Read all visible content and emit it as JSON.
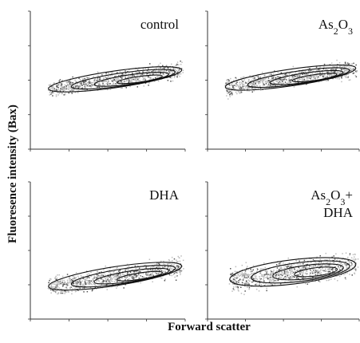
{
  "figure": {
    "ylabel": "Fluoresence intensity (Bax)",
    "xlabel": "Forward scatter"
  },
  "chart_data": [
    {
      "type": "scatter",
      "panel": "control",
      "title_parts": [
        {
          "t": "control",
          "sub": false
        }
      ],
      "xlabel": "Forward scatter",
      "ylabel": "Fluoresence intensity (Bax)",
      "xlim": [
        0,
        1023
      ],
      "ylim": [
        0,
        4
      ],
      "y_scale": "log",
      "grid": false,
      "cluster": {
        "x_start": 120,
        "x_end": 1000,
        "y_start": 1.75,
        "y_end": 2.3,
        "spread": 0.22
      },
      "contour_levels": 4
    },
    {
      "type": "scatter",
      "panel": "As2O3",
      "title_parts": [
        {
          "t": "As",
          "sub": false
        },
        {
          "t": "2",
          "sub": true
        },
        {
          "t": "O",
          "sub": false
        },
        {
          "t": "3",
          "sub": true
        }
      ],
      "xlabel": "Forward scatter",
      "ylabel": "Fluoresence intensity (Bax)",
      "xlim": [
        0,
        1023
      ],
      "ylim": [
        0,
        4
      ],
      "y_scale": "log",
      "grid": false,
      "cluster": {
        "x_start": 120,
        "x_end": 1000,
        "y_start": 1.8,
        "y_end": 2.35,
        "spread": 0.22
      },
      "contour_levels": 4
    },
    {
      "type": "scatter",
      "panel": "DHA",
      "title_parts": [
        {
          "t": "DHA",
          "sub": false
        }
      ],
      "xlabel": "Forward scatter",
      "ylabel": "Fluoresence intensity (Bax)",
      "xlim": [
        0,
        1023
      ],
      "ylim": [
        0,
        4
      ],
      "y_scale": "log",
      "grid": false,
      "cluster": {
        "x_start": 120,
        "x_end": 1000,
        "y_start": 0.95,
        "y_end": 1.55,
        "spread": 0.25
      },
      "contour_levels": 4
    },
    {
      "type": "scatter",
      "panel": "As2O3+DHA",
      "title_parts": [
        {
          "t": "As",
          "sub": false
        },
        {
          "t": "2",
          "sub": true
        },
        {
          "t": "O",
          "sub": false
        },
        {
          "t": "3",
          "sub": true
        },
        {
          "t": "+",
          "sub": false
        },
        {
          "t": "\n",
          "sub": false
        },
        {
          "t": "DHA",
          "sub": false
        }
      ],
      "xlabel": "Forward scatter",
      "ylabel": "Fluoresence intensity (Bax)",
      "xlim": [
        0,
        1023
      ],
      "ylim": [
        0,
        4
      ],
      "y_scale": "log",
      "grid": false,
      "cluster": {
        "x_start": 150,
        "x_end": 1000,
        "y_start": 1.15,
        "y_end": 1.6,
        "spread": 0.32
      },
      "contour_levels": 4
    }
  ]
}
